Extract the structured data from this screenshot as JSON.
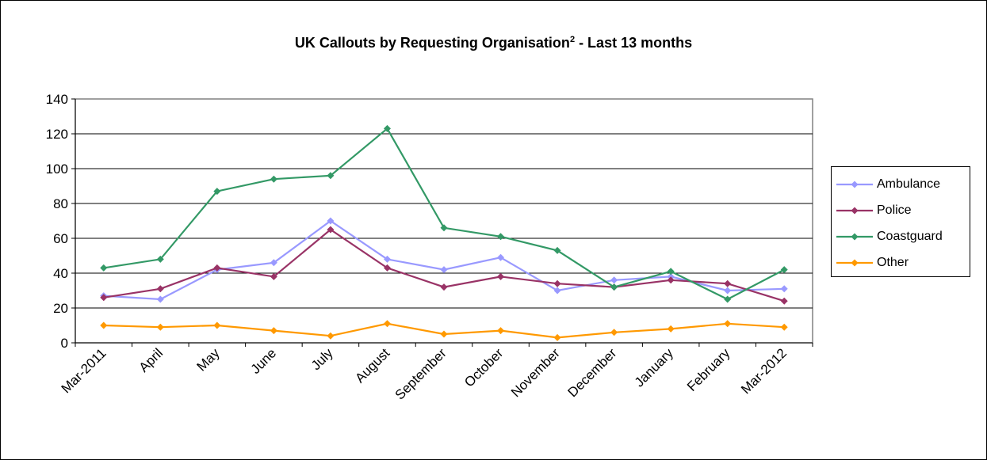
{
  "chart_data": {
    "type": "line",
    "title": "UK Callouts by Requesting Organisation",
    "title_superscript": "2",
    "title_suffix": " - Last 13 months",
    "categories": [
      "Mar-2011",
      "April",
      "May",
      "June",
      "July",
      "August",
      "September",
      "October",
      "November",
      "December",
      "January",
      "February",
      "Mar-2012"
    ],
    "ylim": [
      0,
      140
    ],
    "yticks": [
      "0",
      "20",
      "40",
      "60",
      "80",
      "100",
      "120",
      "140"
    ],
    "grid": true,
    "legend_position": "right",
    "series": [
      {
        "name": "Ambulance",
        "color": "#9999ff",
        "values": [
          27,
          25,
          42,
          46,
          70,
          48,
          42,
          49,
          30,
          36,
          38,
          30,
          31
        ]
      },
      {
        "name": "Police",
        "color": "#993366",
        "values": [
          26,
          31,
          43,
          38,
          65,
          43,
          32,
          38,
          34,
          32,
          36,
          34,
          24
        ]
      },
      {
        "name": "Coastguard",
        "color": "#339966",
        "values": [
          43,
          48,
          87,
          94,
          96,
          123,
          66,
          61,
          53,
          32,
          41,
          25,
          42
        ]
      },
      {
        "name": "Other",
        "color": "#ff9900",
        "values": [
          10,
          9,
          10,
          7,
          4,
          11,
          5,
          7,
          3,
          6,
          8,
          11,
          9
        ]
      }
    ]
  }
}
